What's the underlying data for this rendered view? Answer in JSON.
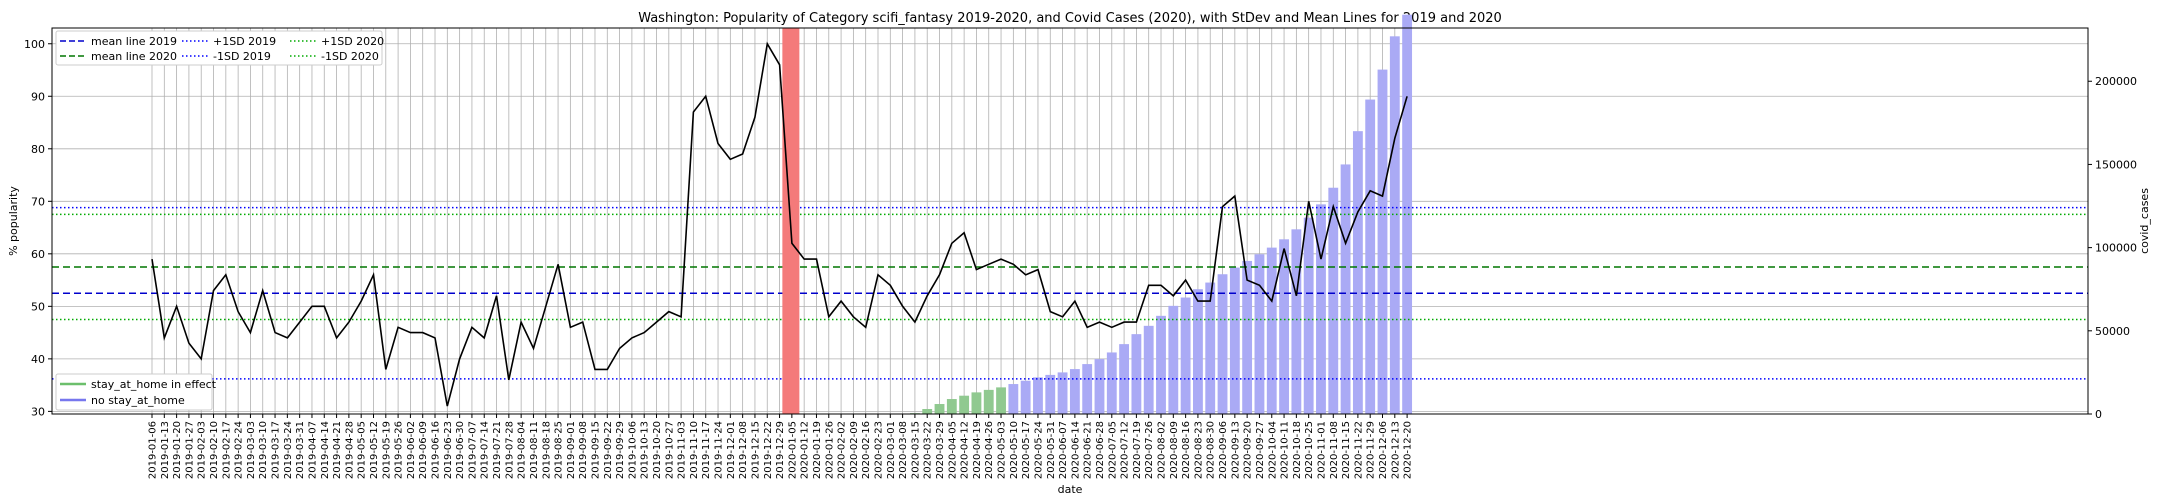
{
  "chart_data": {
    "type": "line",
    "title": "Washington: Popularity of Category scifi_fantasy 2019-2020, and Covid Cases (2020), with StDev and Mean Lines for 2019 and 2020",
    "xlabel": "date",
    "ylabel": "% popularity",
    "ylabel_right": "covid_cases",
    "ylim": [
      29.5,
      103
    ],
    "ylim_right": [
      0,
      232000
    ],
    "yticks": [
      30,
      40,
      50,
      60,
      70,
      80,
      90,
      100
    ],
    "yticks_right": [
      0,
      50000,
      100000,
      150000,
      200000
    ],
    "grid": true,
    "legend_top": {
      "placement": "top-left",
      "entries": [
        "mean line 2019",
        "mean line 2020",
        "+1SD 2019",
        "-1SD 2019",
        "+1SD 2020",
        "-1SD 2020"
      ]
    },
    "legend_bottom": {
      "placement": "bottom-left",
      "entries": [
        "stay_at_home in effect",
        "no stay_at_home"
      ]
    },
    "colors": {
      "line": "#000000",
      "mean_2019": "#0000cc",
      "mean_2020": "#007700",
      "sd_2019": "#0000ff",
      "sd_2020": "#00aa00",
      "bar_stay_home": "#90c990",
      "bar_no_stay_home": "#aaaaf5",
      "highlight": "#f47a7a",
      "legend_green": "#6cbf6c",
      "legend_blue": "#7777ee"
    },
    "reference_lines": {
      "mean_2019": 52.5,
      "mean_2020": 57.5,
      "plus_sd_2019": 68.8,
      "minus_sd_2019": 36.2,
      "plus_sd_2020": 67.5,
      "minus_sd_2020": 47.5
    },
    "highlight_date": "2020-01-05",
    "dates": [
      "2019-01-06",
      "2019-01-13",
      "2019-01-20",
      "2019-01-27",
      "2019-02-03",
      "2019-02-10",
      "2019-02-17",
      "2019-02-24",
      "2019-03-03",
      "2019-03-10",
      "2019-03-17",
      "2019-03-24",
      "2019-03-31",
      "2019-04-07",
      "2019-04-14",
      "2019-04-21",
      "2019-04-28",
      "2019-05-05",
      "2019-05-12",
      "2019-05-19",
      "2019-05-26",
      "2019-06-02",
      "2019-06-09",
      "2019-06-16",
      "2019-06-23",
      "2019-06-30",
      "2019-07-07",
      "2019-07-14",
      "2019-07-21",
      "2019-07-28",
      "2019-08-04",
      "2019-08-11",
      "2019-08-18",
      "2019-08-25",
      "2019-09-01",
      "2019-09-08",
      "2019-09-15",
      "2019-09-22",
      "2019-09-29",
      "2019-10-06",
      "2019-10-13",
      "2019-10-20",
      "2019-10-27",
      "2019-11-03",
      "2019-11-10",
      "2019-11-17",
      "2019-11-24",
      "2019-12-01",
      "2019-12-08",
      "2019-12-15",
      "2019-12-22",
      "2019-12-29",
      "2020-01-05",
      "2020-01-12",
      "2020-01-19",
      "2020-01-26",
      "2020-02-02",
      "2020-02-09",
      "2020-02-16",
      "2020-02-23",
      "2020-03-01",
      "2020-03-08",
      "2020-03-15",
      "2020-03-22",
      "2020-03-29",
      "2020-04-05",
      "2020-04-12",
      "2020-04-19",
      "2020-04-26",
      "2020-05-03",
      "2020-05-10",
      "2020-05-17",
      "2020-05-24",
      "2020-05-31",
      "2020-06-07",
      "2020-06-14",
      "2020-06-21",
      "2020-06-28",
      "2020-07-05",
      "2020-07-12",
      "2020-07-19",
      "2020-07-26",
      "2020-08-02",
      "2020-08-09",
      "2020-08-16",
      "2020-08-23",
      "2020-08-30",
      "2020-09-06",
      "2020-09-13",
      "2020-09-20",
      "2020-09-27",
      "2020-10-04",
      "2020-10-11",
      "2020-10-18",
      "2020-10-25",
      "2020-11-01",
      "2020-11-08",
      "2020-11-15",
      "2020-11-22",
      "2020-11-29",
      "2020-12-06",
      "2020-12-13",
      "2020-12-20"
    ],
    "tick_labels": [
      "2019-01-06",
      "2019-01-13",
      "2019-01-20",
      "2019-01-27",
      "2019-02-03",
      "2019-02-10",
      "2019-02-17",
      "2019-02-24",
      "2019-03-03",
      "2019-03-10",
      "2019-03-17",
      "2019-03-24",
      "2019-03-31",
      "2019-04-07",
      "2019-04-14",
      "2019-04-21",
      "2019-04-28",
      "2019-05-05",
      "2019-05-12",
      "2019-05-19",
      "2019-05-26",
      "2019-06-02",
      "2019-06-09",
      "2019-06-16",
      "2019-06-23",
      "2019-06-30",
      "2019-07-07",
      "2019-07-14",
      "2019-07-21",
      "2019-07-28",
      "2019-08-04",
      "2019-08-11",
      "2019-08-18",
      "2019-08-25",
      "2019-09-01",
      "2019-09-08",
      "2019-09-15",
      "2019-09-22",
      "2019-09-29",
      "2019-10-06",
      "2019-10-13",
      "2019-10-20",
      "2019-10-27",
      "2019-11-03",
      "2019-11-10",
      "2019-11-17",
      "2019-11-24",
      "2019-12-01",
      "2019-12-08",
      "2019-12-15",
      "2019-12-22",
      "2019-12-29",
      "2020-01-05",
      "2020-01-12",
      "2020-01-19",
      "2020-01-26",
      "2020-02-02",
      "2020-02-09",
      "2020-02-16",
      "2020-02-23",
      "2020-03-01",
      "2020-03-08",
      "2020-03-15",
      "2020-03-22",
      "2020-03-29",
      "2020-04-05",
      "2020-04-12",
      "2020-04-19",
      "2020-04-26",
      "2020-05-03",
      "2020-05-10",
      "2020-05-17",
      "2020-05-24",
      "2020-05-31",
      "2020-06-07",
      "2020-06-14",
      "2020-06-21",
      "2020-06-28",
      "2020-07-05",
      "2020-07-12",
      "2020-07-19",
      "2020-07-26",
      "2020-08-02",
      "2020-08-09",
      "2020-08-16",
      "2020-08-23",
      "2020-08-30",
      "2020-09-06",
      "2020-09-13",
      "2020-09-20",
      "2020-09-27",
      "2020-10-04",
      "2020-10-11",
      "2020-10-18",
      "2020-10-25",
      "2020-11-01",
      "2020-11-08",
      "2020-11-15",
      "2020-11-22",
      "2020-11-29",
      "2020-12-06",
      "2020-12-13",
      "2020-12-20"
    ],
    "popularity": [
      59,
      44,
      50,
      43,
      40,
      53,
      56,
      49,
      45,
      53,
      45,
      44,
      47,
      50,
      50,
      44,
      47,
      51,
      56,
      38,
      46,
      45,
      45,
      44,
      31,
      40,
      46,
      44,
      52,
      36,
      47,
      42,
      50,
      58,
      46,
      47,
      38,
      38,
      42,
      44,
      45,
      47,
      49,
      48,
      87,
      90,
      81,
      78,
      79,
      86,
      100,
      96,
      62,
      59,
      59,
      48,
      51,
      48,
      46,
      56,
      54,
      50,
      47,
      52,
      56,
      62,
      64,
      57,
      58,
      59,
      58,
      56,
      57,
      49,
      48,
      51,
      46,
      47,
      46,
      47,
      47,
      54,
      54,
      52,
      55,
      51,
      51,
      69,
      71,
      55,
      54,
      51,
      61,
      52,
      70,
      59,
      69,
      62,
      68,
      72,
      71,
      82,
      90
    ],
    "covid_cases": [
      0,
      0,
      0,
      0,
      0,
      0,
      0,
      0,
      0,
      0,
      0,
      0,
      0,
      0,
      0,
      0,
      0,
      0,
      0,
      0,
      0,
      0,
      0,
      0,
      0,
      0,
      0,
      0,
      0,
      0,
      0,
      0,
      0,
      0,
      0,
      0,
      0,
      0,
      0,
      0,
      0,
      0,
      0,
      0,
      0,
      0,
      0,
      0,
      0,
      0,
      0,
      0,
      0,
      0,
      0,
      0,
      0,
      0,
      0,
      0,
      0,
      0,
      500,
      3000,
      6000,
      9000,
      11000,
      13000,
      14500,
      16000,
      18000,
      20000,
      22000,
      23500,
      25000,
      27000,
      30000,
      33000,
      37000,
      42000,
      48000,
      53000,
      59000,
      65000,
      70000,
      75000,
      79000,
      84000,
      88000,
      92000,
      96000,
      100000,
      105000,
      111000,
      118000,
      126000,
      136000,
      150000,
      170000,
      189000,
      207000,
      227000,
      240000
    ],
    "stay_at_home": [
      0,
      0,
      0,
      0,
      0,
      0,
      0,
      0,
      0,
      0,
      0,
      0,
      0,
      0,
      0,
      0,
      0,
      0,
      0,
      0,
      0,
      0,
      0,
      0,
      0,
      0,
      0,
      0,
      0,
      0,
      0,
      0,
      0,
      0,
      0,
      0,
      0,
      0,
      0,
      0,
      0,
      0,
      0,
      0,
      0,
      0,
      0,
      0,
      0,
      0,
      0,
      0,
      0,
      0,
      0,
      0,
      0,
      0,
      0,
      0,
      0,
      0,
      1,
      1,
      1,
      1,
      1,
      1,
      1,
      1,
      0,
      0,
      0,
      0,
      0,
      0,
      0,
      0,
      0,
      0,
      0,
      0,
      0,
      0,
      0,
      0,
      0,
      0,
      0,
      0,
      0,
      0,
      0,
      0,
      0,
      0,
      0,
      0,
      0,
      0,
      0,
      0,
      0
    ]
  }
}
